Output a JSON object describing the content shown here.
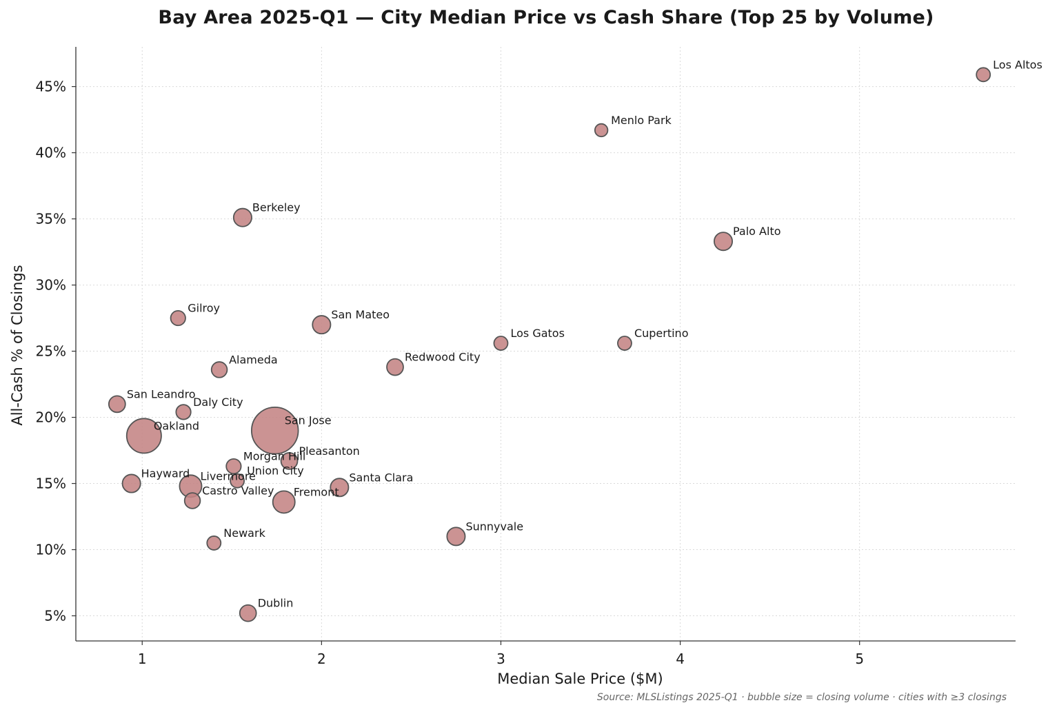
{
  "chart_data": {
    "type": "scatter",
    "title": "Bay Area 2025-Q1 — City Median Price vs Cash Share (Top 25 by Volume)",
    "xlabel": "Median Sale Price ($M)",
    "ylabel": "All-Cash % of Closings",
    "xlim": [
      0.63,
      5.87
    ],
    "ylim": [
      3.1,
      48.0
    ],
    "xticks": [
      1,
      2,
      3,
      4,
      5
    ],
    "xtick_labels": [
      "1",
      "2",
      "3",
      "4",
      "5"
    ],
    "yticks": [
      5,
      10,
      15,
      20,
      25,
      30,
      35,
      40,
      45
    ],
    "ytick_labels": [
      "5%",
      "10%",
      "15%",
      "20%",
      "25%",
      "30%",
      "35%",
      "40%",
      "45%"
    ],
    "grid": true,
    "bubble_size_meaning": "closing volume",
    "marker_color": "#c48484",
    "marker_edge_color": "#555555",
    "points": [
      {
        "label": "Los Altos",
        "x": 5.69,
        "y": 45.9,
        "size": 3.5
      },
      {
        "label": "Menlo Park",
        "x": 3.56,
        "y": 41.7,
        "size": 3.0
      },
      {
        "label": "Berkeley",
        "x": 1.56,
        "y": 35.1,
        "size": 6.0
      },
      {
        "label": "Palo Alto",
        "x": 4.24,
        "y": 33.3,
        "size": 6.0
      },
      {
        "label": "Gilroy",
        "x": 1.2,
        "y": 27.5,
        "size": 4.0
      },
      {
        "label": "San Mateo",
        "x": 2.0,
        "y": 27.0,
        "size": 6.0
      },
      {
        "label": "Los Gatos",
        "x": 3.0,
        "y": 25.6,
        "size": 3.5
      },
      {
        "label": "Cupertino",
        "x": 3.69,
        "y": 25.6,
        "size": 3.5
      },
      {
        "label": "Redwood City",
        "x": 2.41,
        "y": 23.8,
        "size": 5.0
      },
      {
        "label": "Alameda",
        "x": 1.43,
        "y": 23.6,
        "size": 4.5
      },
      {
        "label": "San Leandro",
        "x": 0.86,
        "y": 21.0,
        "size": 5.0
      },
      {
        "label": "Daly City",
        "x": 1.23,
        "y": 20.4,
        "size": 4.0
      },
      {
        "label": "Oakland",
        "x": 1.01,
        "y": 18.6,
        "size": 22.0
      },
      {
        "label": "San Jose",
        "x": 1.74,
        "y": 19.0,
        "size": 40.0
      },
      {
        "label": "Pleasanton",
        "x": 1.82,
        "y": 16.7,
        "size": 5.0
      },
      {
        "label": "Morgan Hill",
        "x": 1.51,
        "y": 16.3,
        "size": 4.0
      },
      {
        "label": "Union City",
        "x": 1.53,
        "y": 15.2,
        "size": 3.5
      },
      {
        "label": "Hayward",
        "x": 0.94,
        "y": 15.0,
        "size": 6.0
      },
      {
        "label": "Livermore",
        "x": 1.27,
        "y": 14.8,
        "size": 9.0
      },
      {
        "label": "Santa Clara",
        "x": 2.1,
        "y": 14.7,
        "size": 6.0
      },
      {
        "label": "Castro Valley",
        "x": 1.28,
        "y": 13.7,
        "size": 4.5
      },
      {
        "label": "Fremont",
        "x": 1.79,
        "y": 13.6,
        "size": 9.0
      },
      {
        "label": "Sunnyvale",
        "x": 2.75,
        "y": 11.0,
        "size": 6.0
      },
      {
        "label": "Newark",
        "x": 1.4,
        "y": 10.5,
        "size": 3.5
      },
      {
        "label": "Dublin",
        "x": 1.59,
        "y": 5.2,
        "size": 5.0
      }
    ]
  },
  "footer": {
    "source": "Source: MLSListings 2025-Q1 · bubble size = closing volume · cities with ≥3 closings"
  }
}
